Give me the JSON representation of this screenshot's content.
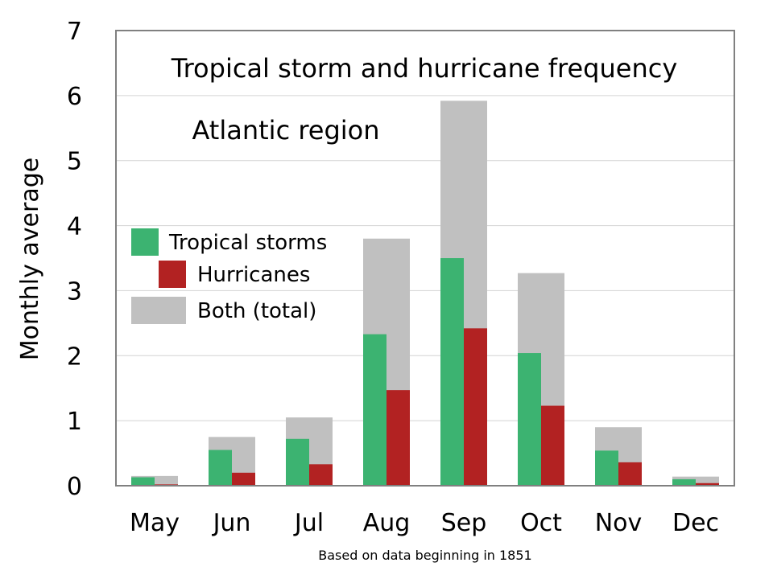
{
  "chart_data": {
    "type": "bar",
    "title": "Tropical storm and hurricane frequency",
    "subtitle": "Atlantic region",
    "ylabel": "Monthly average",
    "xlabel": "",
    "note": "Based on data beginning in 1851",
    "ylim": [
      0,
      7
    ],
    "yticks": [
      "0",
      "1",
      "2",
      "3",
      "4",
      "5",
      "6",
      "7"
    ],
    "categories": [
      "May",
      "Jun",
      "Jul",
      "Aug",
      "Sep",
      "Oct",
      "Nov",
      "Dec"
    ],
    "series": [
      {
        "name": "Tropical storms",
        "color": "#3cb371",
        "values": [
          0.13,
          0.55,
          0.72,
          2.33,
          3.5,
          2.04,
          0.54,
          0.1
        ]
      },
      {
        "name": "Hurricanes",
        "color": "#b22222",
        "values": [
          0.02,
          0.2,
          0.33,
          1.47,
          2.42,
          1.23,
          0.36,
          0.04
        ]
      },
      {
        "name": "Both (total)",
        "color": "#c0c0c0",
        "values": [
          0.15,
          0.75,
          1.05,
          3.8,
          5.92,
          3.27,
          0.9,
          0.14
        ]
      }
    ],
    "legend_position": "left",
    "grid": true
  }
}
